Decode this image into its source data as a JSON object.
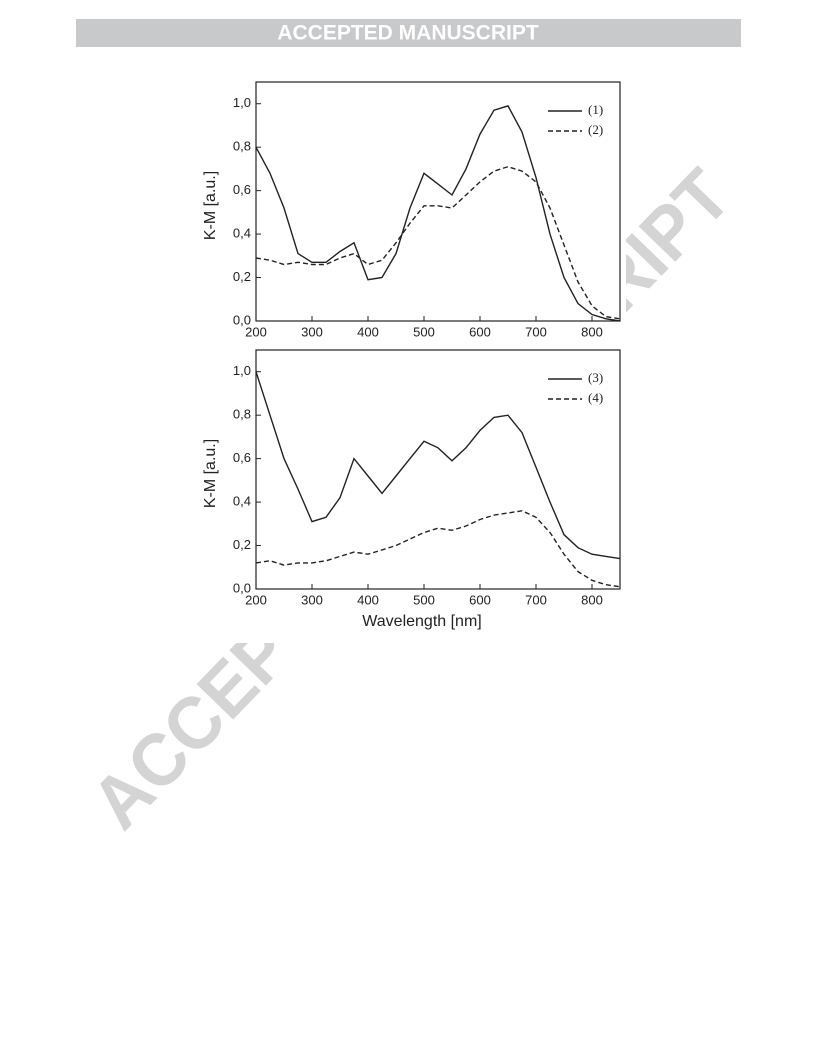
{
  "header": {
    "title": "ACCEPTED MANUSCRIPT"
  },
  "watermark": "ACCEPTED MANUSCRIPT",
  "chart_data": [
    {
      "type": "line",
      "ylabel": "K-M [a.u.]",
      "x": [
        200,
        225,
        250,
        275,
        300,
        325,
        350,
        375,
        400,
        425,
        450,
        475,
        500,
        525,
        550,
        575,
        600,
        625,
        650,
        675,
        700,
        725,
        750,
        775,
        800,
        825,
        850
      ],
      "series": [
        {
          "name": "(1)",
          "color": "#222222",
          "style": "solid",
          "values": [
            0.8,
            0.68,
            0.52,
            0.31,
            0.27,
            0.27,
            0.32,
            0.36,
            0.19,
            0.2,
            0.31,
            0.52,
            0.68,
            0.63,
            0.58,
            0.7,
            0.86,
            0.97,
            0.99,
            0.87,
            0.66,
            0.4,
            0.2,
            0.08,
            0.03,
            0.01,
            0.0
          ]
        },
        {
          "name": "(2)",
          "color": "#222222",
          "style": "dashed",
          "values": [
            0.29,
            0.28,
            0.26,
            0.27,
            0.26,
            0.26,
            0.29,
            0.31,
            0.26,
            0.28,
            0.36,
            0.45,
            0.53,
            0.53,
            0.52,
            0.58,
            0.64,
            0.69,
            0.71,
            0.69,
            0.64,
            0.52,
            0.35,
            0.18,
            0.07,
            0.02,
            0.01
          ]
        }
      ],
      "xlim": [
        200,
        850
      ],
      "xticks": [
        200,
        300,
        400,
        500,
        600,
        700,
        800
      ],
      "ylim": [
        0,
        1.1
      ],
      "yticks": [
        {
          "value": 0,
          "label": "0,0"
        },
        {
          "value": 0.2,
          "label": "0,2"
        },
        {
          "value": 0.4,
          "label": "0,4"
        },
        {
          "value": 0.6,
          "label": "0,6"
        },
        {
          "value": 0.8,
          "label": "0,8"
        },
        {
          "value": 1.0,
          "label": "1,0"
        }
      ],
      "legend": "upper right"
    },
    {
      "type": "line",
      "ylabel": "K-M [a.u.]",
      "xlabel": "Wavelength [nm]",
      "x": [
        200,
        225,
        250,
        275,
        300,
        325,
        350,
        375,
        400,
        425,
        450,
        475,
        500,
        525,
        550,
        575,
        600,
        625,
        650,
        675,
        700,
        725,
        750,
        775,
        800,
        825,
        850
      ],
      "series": [
        {
          "name": "(3)",
          "color": "#222222",
          "style": "solid",
          "values": [
            1.0,
            0.8,
            0.6,
            0.46,
            0.31,
            0.33,
            0.42,
            0.6,
            0.52,
            0.44,
            0.52,
            0.6,
            0.68,
            0.65,
            0.59,
            0.65,
            0.73,
            0.79,
            0.8,
            0.72,
            0.56,
            0.4,
            0.25,
            0.19,
            0.16,
            0.15,
            0.14
          ]
        },
        {
          "name": "(4)",
          "color": "#222222",
          "style": "dashed",
          "values": [
            0.12,
            0.13,
            0.11,
            0.12,
            0.12,
            0.13,
            0.15,
            0.17,
            0.16,
            0.18,
            0.2,
            0.23,
            0.26,
            0.28,
            0.27,
            0.29,
            0.32,
            0.34,
            0.35,
            0.36,
            0.33,
            0.26,
            0.16,
            0.08,
            0.04,
            0.02,
            0.01
          ]
        }
      ],
      "xlim": [
        200,
        850
      ],
      "xticks": [
        200,
        300,
        400,
        500,
        600,
        700,
        800
      ],
      "ylim": [
        0,
        1.1
      ],
      "yticks": [
        {
          "value": 0,
          "label": "0,0"
        },
        {
          "value": 0.2,
          "label": "0,2"
        },
        {
          "value": 0.4,
          "label": "0,4"
        },
        {
          "value": 0.6,
          "label": "0,6"
        },
        {
          "value": 0.8,
          "label": "0,8"
        },
        {
          "value": 1.0,
          "label": "1,0"
        }
      ],
      "legend": "upper right"
    }
  ]
}
